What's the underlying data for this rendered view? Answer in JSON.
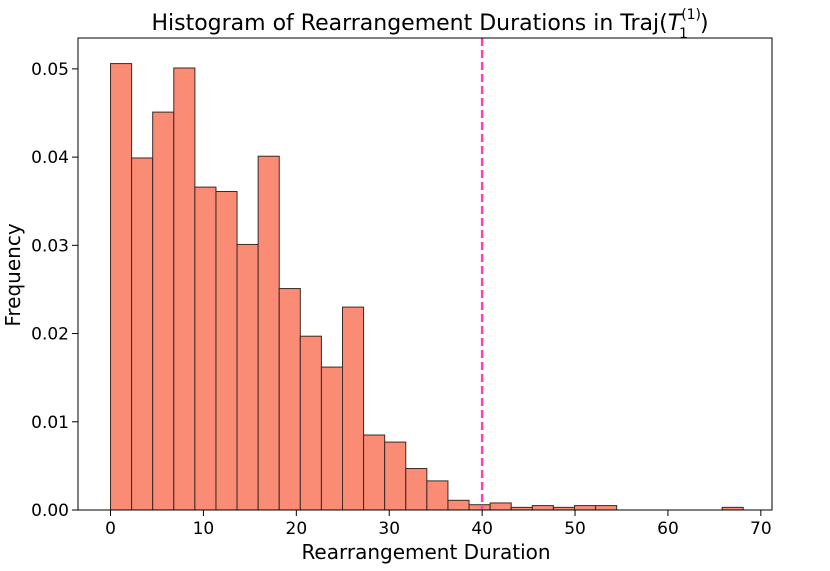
{
  "chart_data": {
    "type": "bar",
    "title_main": "Histogram of Rearrangement Durations in Traj(",
    "title_var": "T",
    "title_sub": "1",
    "title_sup": "(1)",
    "title_close": ")",
    "xlabel": "Rearrangement Duration",
    "ylabel": "Frequency",
    "xlim": [
      -3.5,
      71.2
    ],
    "ylim": [
      0,
      0.0535
    ],
    "xticks": [
      0,
      10,
      20,
      30,
      40,
      50,
      60,
      70
    ],
    "xtick_labels": [
      "0",
      "10",
      "20",
      "30",
      "40",
      "50",
      "60",
      "70"
    ],
    "yticks": [
      0.0,
      0.01,
      0.02,
      0.03,
      0.04,
      0.05
    ],
    "ytick_labels": [
      "0.00",
      "0.01",
      "0.02",
      "0.03",
      "0.04",
      "0.05"
    ],
    "bin_start": 0,
    "bin_width": 2.27,
    "values": [
      0.0506,
      0.0399,
      0.0451,
      0.0501,
      0.0366,
      0.0361,
      0.0301,
      0.0401,
      0.0251,
      0.0197,
      0.0162,
      0.023,
      0.0085,
      0.0077,
      0.0047,
      0.0033,
      0.0011,
      0.0006,
      0.0008,
      0.0003,
      0.0005,
      0.0003,
      0.0005,
      0.0005,
      0,
      0,
      0,
      0,
      0,
      0.0003
    ],
    "bar_color": "#fa8b74",
    "bar_edge_color": "#3a2a26",
    "vline_x": 40,
    "vline_color": "#ff3fb6",
    "grid": false
  }
}
